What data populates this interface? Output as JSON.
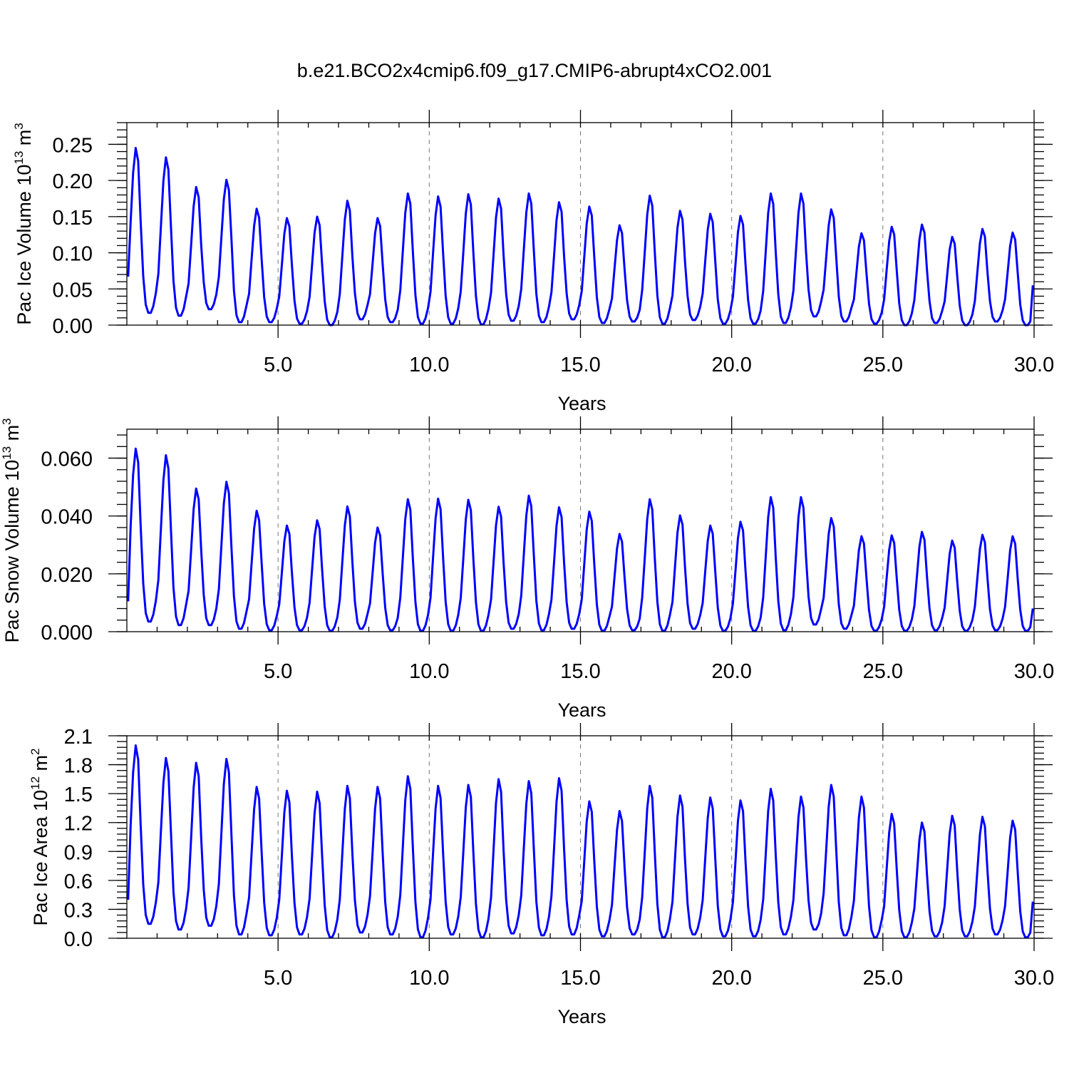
{
  "page": {
    "title": "b.e21.BCO2x4cmip6.f09_g17.CMIP6-abrupt4xCO2.001"
  },
  "colors": {
    "line": "#0000ff",
    "frame": "#000000",
    "grid": "#777777"
  },
  "chart_data": [
    {
      "type": "line",
      "ylabel_main": "Pac Ice Volume 10",
      "ylabel_exp": "13",
      "ylabel_unit": " m",
      "ylabel_unit_exp": "3",
      "xlabel": "Years",
      "xlim": [
        0.0,
        30.0
      ],
      "ylim": [
        0.0,
        0.28
      ],
      "xticks": [
        5,
        10,
        15,
        20,
        25,
        30
      ],
      "xtick_labels": [
        "5.0",
        "10.0",
        "15.0",
        "20.0",
        "25.0",
        "30.0"
      ],
      "yticks": [
        0,
        0.05,
        0.1,
        0.15,
        0.2,
        0.25
      ],
      "ytick_labels": [
        "0.00",
        "0.05",
        "0.10",
        "0.15",
        "0.20",
        "0.25"
      ],
      "grid": "x-dashed",
      "series": [
        {
          "peaks": [
            0.245,
            0.232,
            0.191,
            0.201,
            0.161,
            0.148,
            0.15,
            0.172,
            0.148,
            0.182,
            0.178,
            0.181,
            0.175,
            0.182,
            0.17,
            0.164,
            0.138,
            0.179,
            0.158,
            0.154,
            0.151,
            0.182,
            0.182,
            0.16,
            0.127,
            0.136,
            0.139,
            0.122,
            0.133,
            0.128
          ],
          "troughs": [
            0.017,
            0.013,
            0.022,
            0.004,
            0.004,
            0.002,
            0.0,
            0.008,
            0.004,
            0.002,
            0.002,
            0.001,
            0.006,
            0.004,
            0.008,
            0.003,
            0.005,
            0.002,
            0.007,
            0.002,
            0.002,
            0.003,
            0.012,
            0.005,
            0.002,
            0.0,
            0.003,
            0.0,
            0.005,
            0.0
          ],
          "start": 0.067,
          "end": 0.055
        }
      ]
    },
    {
      "type": "line",
      "ylabel_main": "Pac Snow Volume 10",
      "ylabel_exp": "13",
      "ylabel_unit": " m",
      "ylabel_unit_exp": "3",
      "xlabel": "Years",
      "xlim": [
        0.0,
        30.0
      ],
      "ylim": [
        0.0,
        0.07
      ],
      "xticks": [
        5,
        10,
        15,
        20,
        25,
        30
      ],
      "xtick_labels": [
        "5.0",
        "10.0",
        "15.0",
        "20.0",
        "25.0",
        "30.0"
      ],
      "yticks": [
        0,
        0.02,
        0.04,
        0.06
      ],
      "ytick_labels": [
        "0.000",
        "0.020",
        "0.040",
        "0.060"
      ],
      "grid": "x-dashed",
      "series": [
        {
          "peaks": [
            0.0633,
            0.061,
            0.0495,
            0.0518,
            0.0418,
            0.0367,
            0.0385,
            0.0433,
            0.036,
            0.0458,
            0.046,
            0.0456,
            0.0432,
            0.047,
            0.043,
            0.0415,
            0.0338,
            0.0458,
            0.0402,
            0.0367,
            0.038,
            0.0465,
            0.0465,
            0.0393,
            0.033,
            0.0333,
            0.0345,
            0.0315,
            0.0335,
            0.033
          ],
          "troughs": [
            0.0035,
            0.0023,
            0.0023,
            0.001,
            0.0005,
            0.0005,
            0.0003,
            0.001,
            0.0005,
            0.0003,
            0.0003,
            0.0003,
            0.001,
            0.0005,
            0.001,
            0.0003,
            0.0005,
            0.0003,
            0.001,
            0.0003,
            0.0003,
            0.0005,
            0.0025,
            0.001,
            0.0003,
            0.0003,
            0.0005,
            0.0003,
            0.0005,
            0.0003
          ],
          "start": 0.0105,
          "end": 0.008
        }
      ]
    },
    {
      "type": "line",
      "ylabel_main": "Pac Ice Area 10",
      "ylabel_exp": "12",
      "ylabel_unit": " m",
      "ylabel_unit_exp": "2",
      "xlabel": "Years",
      "xlim": [
        0.0,
        30.0
      ],
      "ylim": [
        0.0,
        2.1
      ],
      "xticks": [
        5,
        10,
        15,
        20,
        25,
        30
      ],
      "xtick_labels": [
        "5.0",
        "10.0",
        "15.0",
        "20.0",
        "25.0",
        "30.0"
      ],
      "yticks": [
        0,
        0.3,
        0.6,
        0.9,
        1.2,
        1.5,
        1.8,
        2.1
      ],
      "ytick_labels": [
        "0.0",
        "0.3",
        "0.6",
        "0.9",
        "1.2",
        "1.5",
        "1.8",
        "2.1"
      ],
      "grid": "x-dashed",
      "series": [
        {
          "peaks": [
            2.0,
            1.87,
            1.82,
            1.86,
            1.57,
            1.53,
            1.52,
            1.58,
            1.57,
            1.68,
            1.58,
            1.59,
            1.65,
            1.63,
            1.66,
            1.42,
            1.32,
            1.58,
            1.48,
            1.46,
            1.43,
            1.55,
            1.47,
            1.59,
            1.47,
            1.29,
            1.2,
            1.27,
            1.26,
            1.22
          ],
          "troughs": [
            0.15,
            0.09,
            0.13,
            0.04,
            0.03,
            0.04,
            0.01,
            0.06,
            0.04,
            0.01,
            0.04,
            0.01,
            0.05,
            0.03,
            0.04,
            0.02,
            0.04,
            0.01,
            0.04,
            0.02,
            0.02,
            0.04,
            0.09,
            0.03,
            0.01,
            0.01,
            0.02,
            0.02,
            0.04,
            0.01
          ],
          "start": 0.4,
          "end": 0.38
        }
      ]
    }
  ]
}
